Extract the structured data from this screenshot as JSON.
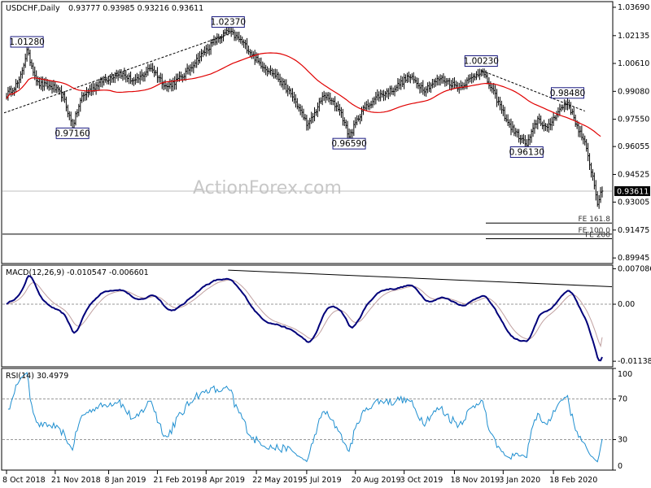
{
  "header": {
    "symbol_tf": "USDCHF,Daily",
    "ohlc": "0.93777 0.93985 0.93216 0.93611"
  },
  "watermark": "ActionForex.com",
  "colors": {
    "bars": "#000000",
    "ma": "#e00000",
    "macd": "#00007a",
    "signal": "#c0a0a0",
    "rsi": "#1f8fd0",
    "trend": "#000000",
    "price_label_bg": "#ffffff",
    "current_box": "#000000"
  },
  "chart_data": [
    {
      "type": "ohlc",
      "panel": "price",
      "x_ticks": [
        "8 Oct 2018",
        "21 Nov 2018",
        "8 Jan 2019",
        "21 Feb 2019",
        "8 Apr 2019",
        "22 May 2019",
        "5 Jul 2019",
        "20 Aug 2019",
        "3 Oct 2019",
        "18 Nov 2019",
        "3 Jan 2020",
        "18 Feb 2020"
      ],
      "y_ticks": [
        "1.03690",
        "1.02135",
        "1.00610",
        "0.99080",
        "0.97550",
        "0.96055",
        "0.94525",
        "0.93005",
        "0.91475",
        "0.89945"
      ],
      "ylim": [
        0.8964,
        1.04
      ],
      "current_price": "0.93611",
      "moving_average": "red",
      "annotations": [
        {
          "label": "1.01280",
          "x": 13,
          "y": 1.0128
        },
        {
          "label": "0.97160",
          "x": 42,
          "y": 0.9716
        },
        {
          "label": "1.02370",
          "x": 141,
          "y": 1.0237
        },
        {
          "label": "0.96590",
          "x": 218,
          "y": 0.9659
        },
        {
          "label": "1.00230",
          "x": 302,
          "y": 1.0023
        },
        {
          "label": "0.96130",
          "x": 331,
          "y": 0.9613
        },
        {
          "label": "0.98480",
          "x": 357,
          "y": 0.9848
        }
      ],
      "fe_levels": [
        {
          "label": "FE 161.8",
          "y": 0.9186
        },
        {
          "label": "FE 100.0",
          "y": 0.9125
        },
        {
          "label": "FE 200",
          "y": 0.91
        }
      ]
    },
    {
      "type": "line",
      "panel": "macd",
      "title": "MACD(12,26,9) -0.010547 -0.006601",
      "y_ticks": [
        "0.007086",
        "0.00",
        "-0.011386"
      ],
      "ylim": [
        -0.0125,
        0.0078
      ],
      "series": [
        {
          "name": "MACD"
        },
        {
          "name": "Signal"
        }
      ]
    },
    {
      "type": "line",
      "panel": "rsi",
      "title": "RSI(14) 30.4979",
      "y_ticks": [
        "100",
        "70",
        "30",
        "0"
      ],
      "ylim": [
        0,
        100
      ]
    }
  ]
}
